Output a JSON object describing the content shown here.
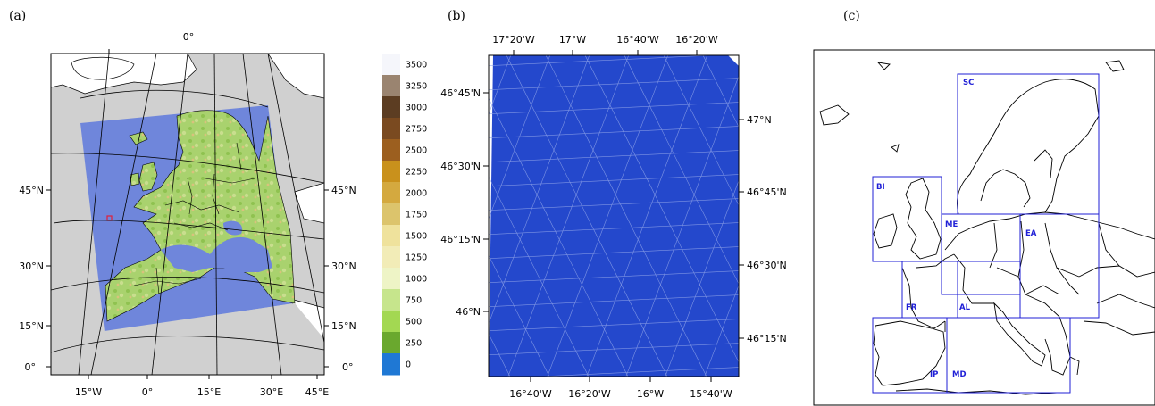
{
  "panels": {
    "a": {
      "letter": "(a)",
      "top_label": "0°",
      "left_lat_labels": [
        "45°N",
        "30°N",
        "15°N",
        "0°"
      ],
      "right_lat_labels": [
        "45°N",
        "30°N",
        "15°N",
        "0°"
      ],
      "bottom_lon_labels": [
        "15°W",
        "0°",
        "15°E",
        "30°E",
        "45°E"
      ],
      "colorbar": {
        "labels": [
          "3500",
          "3250",
          "3000",
          "2750",
          "2500",
          "2250",
          "2000",
          "1750",
          "1500",
          "1250",
          "1000",
          "750",
          "500",
          "250",
          "0"
        ],
        "colors": [
          "#f5f6fb",
          "#9a8470",
          "#5c3d22",
          "#7a4a20",
          "#9c5f1f",
          "#c9911c",
          "#d4a93f",
          "#dcc46c",
          "#efe29c",
          "#f2ecb7",
          "#eef4c6",
          "#c6e58c",
          "#a3d852",
          "#6aa82e",
          "#1f78d4"
        ]
      }
    },
    "b": {
      "letter": "(b)",
      "top_lon_labels": [
        "17°20'W",
        "17°W",
        "16°40'W",
        "16°20'W"
      ],
      "left_lat_labels": [
        "46°45'N",
        "46°30'N",
        "46°15'N",
        "46°N"
      ],
      "right_lat_labels": [
        "47°N",
        "46°45'N",
        "46°30'N",
        "46°15'N"
      ],
      "bottom_lon_labels": [
        "16°40'W",
        "16°20'W",
        "16°W",
        "15°40'W"
      ],
      "fill_color": "#2448cc"
    },
    "c": {
      "letter": "(c)",
      "regions": [
        "SC",
        "BI",
        "ME",
        "EA",
        "FR",
        "AL",
        "IP",
        "MD"
      ],
      "region_color": "#1f1fd6"
    }
  }
}
